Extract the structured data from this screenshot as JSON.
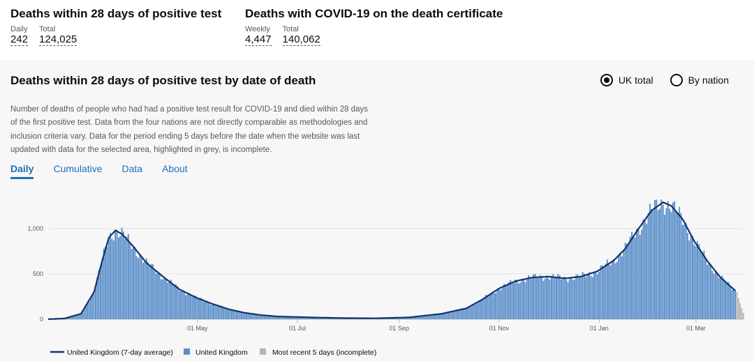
{
  "summary": {
    "left": {
      "title": "Deaths within 28 days of positive test",
      "metrics": [
        {
          "label": "Daily",
          "value": "242"
        },
        {
          "label": "Total",
          "value": "124,025"
        }
      ]
    },
    "right": {
      "title": "Deaths with COVID-19 on the death certificate",
      "metrics": [
        {
          "label": "Weekly",
          "value": "4,447"
        },
        {
          "label": "Total",
          "value": "140,062"
        }
      ]
    }
  },
  "panel": {
    "title": "Deaths within 28 days of positive test by date of death",
    "radio": {
      "options": [
        "UK total",
        "By nation"
      ],
      "selected": "UK total"
    },
    "description": "Number of deaths of people who had had a positive test result for COVID-19 and died within 28 days of the first positive test. Data from the four nations are not directly comparable as methodologies and inclusion criteria vary. Data for the period ending 5 days before the date when the website was last updated with data for the selected area, highlighted in grey, is incomplete.",
    "tabs": [
      "Daily",
      "Cumulative",
      "Data",
      "About"
    ],
    "active_tab": "Daily"
  },
  "colors": {
    "bar": "#5b8fc9",
    "line": "#12336b",
    "incomplete": "#b1b4b6",
    "link": "#1d70b8"
  },
  "chart_data": {
    "type": "bar",
    "y_ticks": [
      "0",
      "500",
      "1,000"
    ],
    "ylim": [
      0,
      1400
    ],
    "x_ticks": [
      "01 May",
      "01 Jul",
      "01 Sep",
      "01 Nov",
      "01 Jan",
      "01 Mar"
    ],
    "series": [
      {
        "name": "United Kingdom (7-day average)",
        "kind": "line"
      },
      {
        "name": "United Kingdom",
        "kind": "bar"
      },
      {
        "name": "Most recent 5 days (incomplete)",
        "kind": "bar"
      }
    ],
    "keypoints_day_value": [
      [
        0,
        0
      ],
      [
        10,
        8
      ],
      [
        20,
        60
      ],
      [
        28,
        300
      ],
      [
        33,
        650
      ],
      [
        37,
        900
      ],
      [
        41,
        980
      ],
      [
        45,
        940
      ],
      [
        52,
        800
      ],
      [
        60,
        620
      ],
      [
        70,
        470
      ],
      [
        80,
        330
      ],
      [
        90,
        240
      ],
      [
        100,
        170
      ],
      [
        110,
        110
      ],
      [
        120,
        70
      ],
      [
        130,
        45
      ],
      [
        140,
        30
      ],
      [
        160,
        20
      ],
      [
        180,
        12
      ],
      [
        200,
        10
      ],
      [
        220,
        20
      ],
      [
        240,
        60
      ],
      [
        255,
        120
      ],
      [
        265,
        220
      ],
      [
        275,
        340
      ],
      [
        285,
        420
      ],
      [
        295,
        460
      ],
      [
        305,
        470
      ],
      [
        315,
        450
      ],
      [
        325,
        470
      ],
      [
        335,
        530
      ],
      [
        345,
        650
      ],
      [
        352,
        780
      ],
      [
        360,
        1000
      ],
      [
        368,
        1200
      ],
      [
        375,
        1290
      ],
      [
        380,
        1250
      ],
      [
        387,
        1100
      ],
      [
        394,
        860
      ],
      [
        402,
        640
      ],
      [
        410,
        460
      ],
      [
        418,
        330
      ],
      [
        424,
        242
      ]
    ],
    "incomplete_days": 5
  }
}
